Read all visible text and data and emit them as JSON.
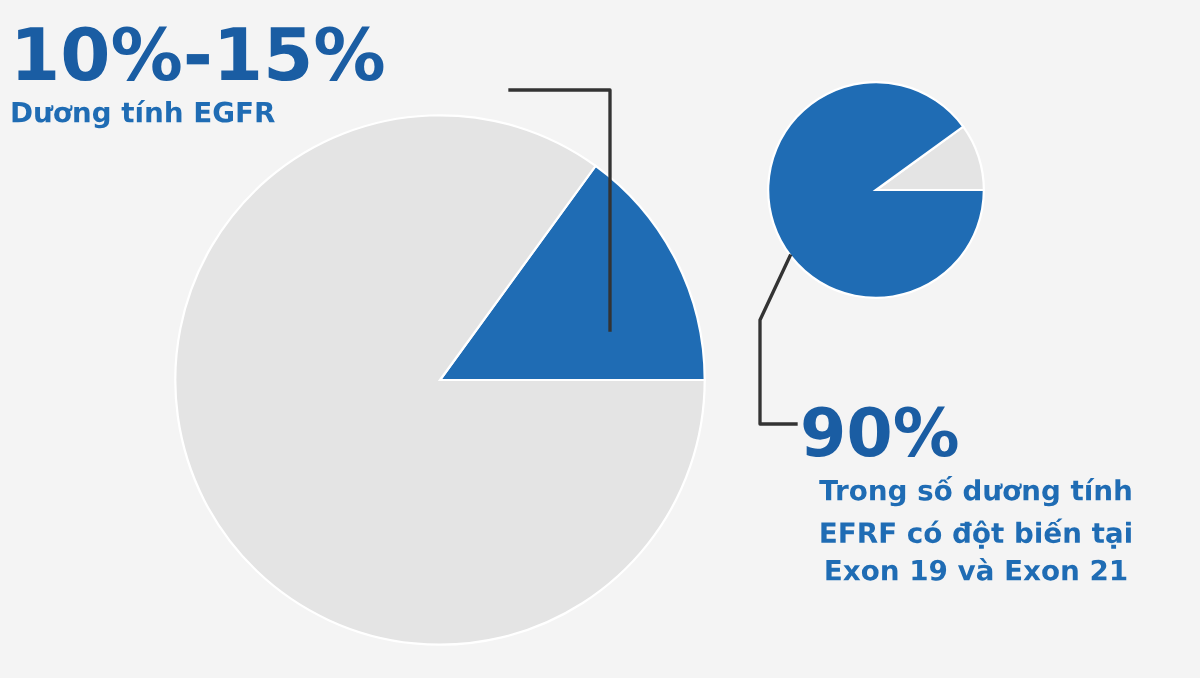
{
  "chart_data": [
    {
      "type": "pie",
      "title": "10%-15%",
      "subtitle": "Dương tính EGFR",
      "categories": [
        null,
        null
      ],
      "values": [
        15,
        85
      ],
      "colors": [
        "#1f6cb4",
        "#e4e4e4"
      ]
    },
    {
      "type": "pie",
      "title": "90%",
      "subtitle": "Trong số dương tính\nEFRF có đột biến tại\nExon 19 và Exon 21",
      "categories": [
        null,
        null
      ],
      "values": [
        10,
        90
      ],
      "colors": [
        "#e4e4e4",
        "#1f6cb4"
      ]
    }
  ]
}
